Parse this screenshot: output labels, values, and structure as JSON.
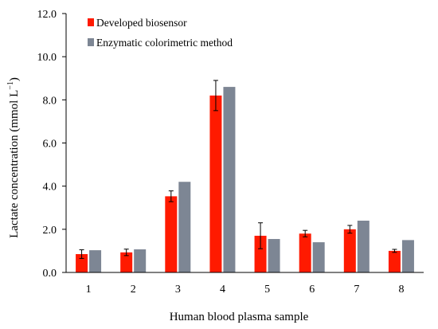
{
  "chart_data": {
    "type": "bar",
    "categories": [
      "1",
      "2",
      "3",
      "4",
      "5",
      "6",
      "7",
      "8"
    ],
    "series": [
      {
        "name": "Developed biosensor",
        "values": [
          0.85,
          0.93,
          3.53,
          8.2,
          1.7,
          1.8,
          2.0,
          1.0
        ],
        "errors": [
          0.2,
          0.15,
          0.25,
          0.7,
          0.6,
          0.15,
          0.18,
          0.07
        ],
        "color": "#ff1a00"
      },
      {
        "name": "Enzymatic colorimetric method",
        "values": [
          1.03,
          1.07,
          4.2,
          8.6,
          1.55,
          1.4,
          2.4,
          1.5
        ],
        "color": "#7d8694"
      }
    ],
    "xlabel": "Human blood plasma sample",
    "ylabel_main": "Lactate concentration (mmol L",
    "ylabel_sup": "−1",
    "ylabel_end": ")",
    "ylim": [
      0,
      12
    ],
    "yticks": [
      "0.0",
      "2.0",
      "4.0",
      "6.0",
      "8.0",
      "10.0",
      "12.0"
    ],
    "legend_position": "top-left",
    "grid": false
  }
}
